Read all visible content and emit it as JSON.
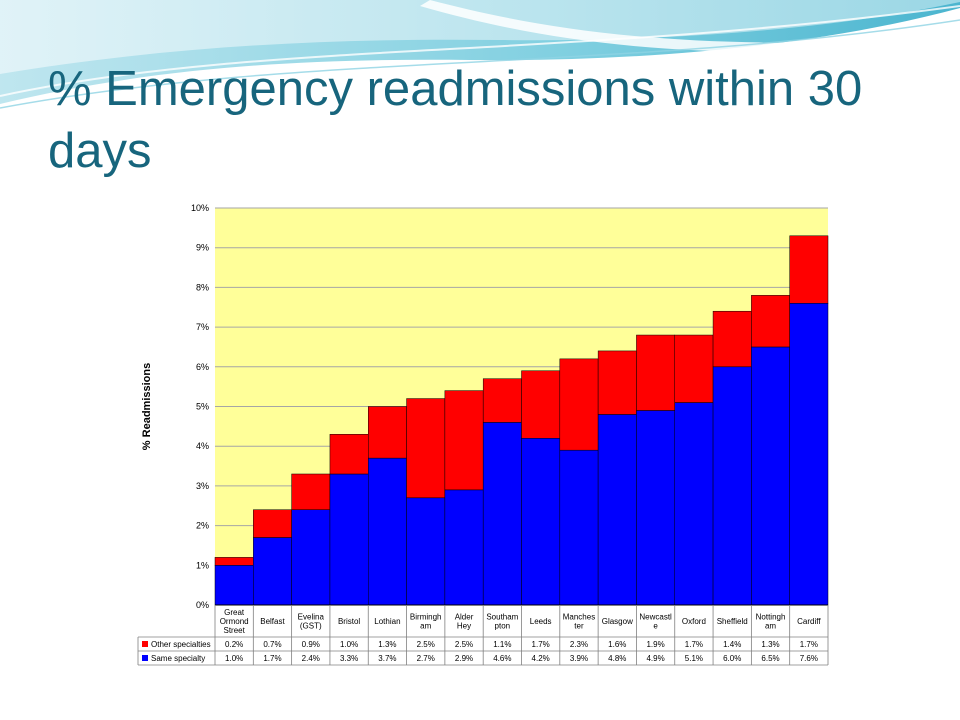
{
  "slide": {
    "title": "% Emergency readmissions within 30 days"
  },
  "colors": {
    "title": "#17657d",
    "plot_background": "#ffff99",
    "other_specialties": "#ff0000",
    "same_specialty": "#0000ff",
    "gridline": "#a6a6a6"
  },
  "chart_data": {
    "type": "bar",
    "stacked": true,
    "ylabel": "% Readmissions",
    "ylim": [
      0,
      10
    ],
    "y_ticks": [
      "0%",
      "1%",
      "2%",
      "3%",
      "4%",
      "5%",
      "6%",
      "7%",
      "8%",
      "9%",
      "10%"
    ],
    "grid": true,
    "legend": "table-below",
    "categories": [
      [
        "Great",
        "Ormond",
        "Street"
      ],
      [
        "Belfast"
      ],
      [
        "Evelina",
        "(GST)"
      ],
      [
        "Bristol"
      ],
      [
        "Lothian"
      ],
      [
        "Birmingh",
        "am"
      ],
      [
        "Alder",
        "Hey"
      ],
      [
        "Southam",
        "pton"
      ],
      [
        "Leeds"
      ],
      [
        "Manches",
        "ter"
      ],
      [
        "Glasgow"
      ],
      [
        "Newcastl",
        "e"
      ],
      [
        "Oxford"
      ],
      [
        "Sheffield"
      ],
      [
        "Nottingh",
        "am"
      ],
      [
        "Cardiff"
      ]
    ],
    "series": [
      {
        "name": "Same specialty",
        "color": "#0000ff",
        "values": [
          1.0,
          1.7,
          2.4,
          3.3,
          3.7,
          2.7,
          2.9,
          4.6,
          4.2,
          3.9,
          4.8,
          4.9,
          5.1,
          6.0,
          6.5,
          7.6
        ],
        "labels": [
          "1.0%",
          "1.7%",
          "2.4%",
          "3.3%",
          "3.7%",
          "2.7%",
          "2.9%",
          "4.6%",
          "4.2%",
          "3.9%",
          "4.8%",
          "4.9%",
          "5.1%",
          "6.0%",
          "6.5%",
          "7.6%"
        ]
      },
      {
        "name": "Other specialties",
        "color": "#ff0000",
        "values": [
          0.2,
          0.7,
          0.9,
          1.0,
          1.3,
          2.5,
          2.5,
          1.1,
          1.7,
          2.3,
          1.6,
          1.9,
          1.7,
          1.4,
          1.3,
          1.7
        ],
        "labels": [
          "0.2%",
          "0.7%",
          "0.9%",
          "1.0%",
          "1.3%",
          "2.5%",
          "2.5%",
          "1.1%",
          "1.7%",
          "2.3%",
          "1.6%",
          "1.9%",
          "1.7%",
          "1.4%",
          "1.3%",
          "1.7%"
        ]
      }
    ]
  }
}
